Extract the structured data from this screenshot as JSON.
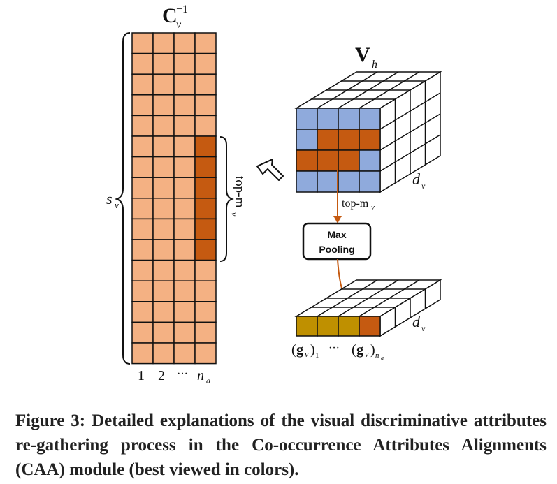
{
  "diagram": {
    "matrix_title": "C",
    "matrix_title_sub": "v",
    "matrix_title_sup": "−1",
    "rows_label": "s",
    "rows_label_sub": "v",
    "topm_label": "top-m",
    "topm_label_sub": "v",
    "col_labels": [
      "1",
      "2",
      "···"
    ],
    "col_last": "n",
    "col_last_sub": "a",
    "tensor_title": "V",
    "tensor_title_sub": "h",
    "depth_label": "d",
    "depth_label_sub": "v",
    "arrow_label": "top-m",
    "arrow_label_sub": "v",
    "pool_box_line1": "Max",
    "pool_box_line2": "Pooling",
    "out_first": "(g",
    "out_first_sub_v": "v",
    "out_first_close": ")",
    "out_first_idx": "1",
    "out_ellipsis": "···",
    "out_last": "(g",
    "out_last_sub_v": "v",
    "out_last_close": ")",
    "out_last_idx": "n",
    "out_last_idx_sub": "a",
    "colors": {
      "matrix_cell": "#f4b183",
      "highlight": "#c55a11",
      "tensor_cell": "#8faadc",
      "output_cell": "#bf9000",
      "arrow": "#c55a11"
    }
  },
  "caption": "Figure 3: Detailed explanations of the visual discriminative attributes re-gathering process in the Co-occurrence Attributes Alignments (CAA) module (best viewed in colors)."
}
